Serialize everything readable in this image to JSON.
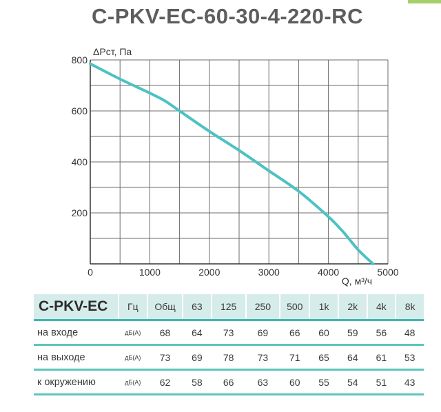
{
  "title": "C-PKV-EC-60-30-4-220-RC",
  "accent_color": "#5cc4bc",
  "chart_data": {
    "type": "line",
    "ylabel": "ΔPст, Па",
    "xlabel": "Q, м³/ч",
    "xlim": [
      0,
      5000
    ],
    "ylim": [
      0,
      800
    ],
    "x_ticks": [
      0,
      1000,
      2000,
      3000,
      4000,
      5000
    ],
    "x_tick_labels": [
      "0",
      "1000",
      "2000",
      "3000",
      "4000",
      "5000"
    ],
    "y_ticks": [
      200,
      400,
      600,
      800
    ],
    "y_tick_labels": [
      "200",
      "400",
      "600",
      "800"
    ],
    "grid": true,
    "series": [
      {
        "color": "#4dc2c2",
        "x": [
          0,
          500,
          1000,
          1250,
          1500,
          2000,
          2500,
          3000,
          3500,
          4000,
          4250,
          4500,
          4750
        ],
        "y": [
          785,
          725,
          670,
          640,
          600,
          520,
          445,
          365,
          285,
          185,
          125,
          55,
          0
        ]
      }
    ]
  },
  "table": {
    "model_label": "C-PKV-EC",
    "headers": [
      "Гц",
      "Общ",
      "63",
      "125",
      "250",
      "500",
      "1k",
      "2k",
      "4k",
      "8k"
    ],
    "rows": [
      {
        "label": "на входе",
        "unit": "дБ(А)",
        "values": [
          "68",
          "64",
          "73",
          "69",
          "66",
          "60",
          "59",
          "56",
          "48"
        ]
      },
      {
        "label": "на выходе",
        "unit": "дБ(А)",
        "values": [
          "73",
          "69",
          "78",
          "73",
          "71",
          "65",
          "64",
          "61",
          "53"
        ]
      },
      {
        "label": "к окружению",
        "unit": "дБ(А)",
        "values": [
          "62",
          "58",
          "66",
          "63",
          "60",
          "55",
          "54",
          "51",
          "43"
        ]
      }
    ]
  }
}
